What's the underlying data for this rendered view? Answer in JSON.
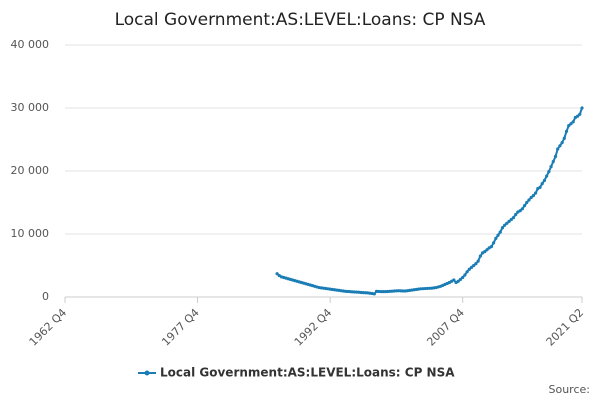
{
  "chart_data": {
    "type": "line",
    "title": "Local Government:AS:LEVEL:Loans: CP NSA",
    "source_label": "Source:",
    "x": [
      "1986 Q4",
      "1987 Q1",
      "1987 Q2",
      "1987 Q3",
      "1987 Q4",
      "1988 Q1",
      "1988 Q2",
      "1988 Q3",
      "1988 Q4",
      "1989 Q1",
      "1989 Q2",
      "1989 Q3",
      "1989 Q4",
      "1990 Q1",
      "1990 Q2",
      "1990 Q3",
      "1990 Q4",
      "1991 Q1",
      "1991 Q2",
      "1991 Q3",
      "1991 Q4",
      "1992 Q1",
      "1992 Q2",
      "1992 Q3",
      "1992 Q4",
      "1993 Q1",
      "1993 Q2",
      "1993 Q3",
      "1993 Q4",
      "1994 Q1",
      "1994 Q2",
      "1994 Q3",
      "1994 Q4",
      "1995 Q1",
      "1995 Q2",
      "1995 Q3",
      "1995 Q4",
      "1996 Q1",
      "1996 Q2",
      "1996 Q3",
      "1996 Q4",
      "1997 Q1",
      "1997 Q2",
      "1997 Q3",
      "1997 Q4",
      "1998 Q1",
      "1998 Q2",
      "1998 Q3",
      "1998 Q4",
      "1999 Q1",
      "1999 Q2",
      "1999 Q3",
      "1999 Q4",
      "2000 Q1",
      "2000 Q2",
      "2000 Q3",
      "2000 Q4",
      "2001 Q1",
      "2001 Q2",
      "2001 Q3",
      "2001 Q4",
      "2002 Q1",
      "2002 Q2",
      "2002 Q3",
      "2002 Q4",
      "2003 Q1",
      "2003 Q2",
      "2003 Q3",
      "2003 Q4",
      "2004 Q1",
      "2004 Q2",
      "2004 Q3",
      "2004 Q4",
      "2005 Q1",
      "2005 Q2",
      "2005 Q3",
      "2005 Q4",
      "2006 Q1",
      "2006 Q2",
      "2006 Q3",
      "2006 Q4",
      "2007 Q1",
      "2007 Q2",
      "2007 Q3",
      "2007 Q4",
      "2008 Q1",
      "2008 Q2",
      "2008 Q3",
      "2008 Q4",
      "2009 Q1",
      "2009 Q2",
      "2009 Q3",
      "2009 Q4",
      "2010 Q1",
      "2010 Q2",
      "2010 Q3",
      "2010 Q4",
      "2011 Q1",
      "2011 Q2",
      "2011 Q3",
      "2011 Q4",
      "2012 Q1",
      "2012 Q2",
      "2012 Q3",
      "2012 Q4",
      "2013 Q1",
      "2013 Q2",
      "2013 Q3",
      "2013 Q4",
      "2014 Q1",
      "2014 Q2",
      "2014 Q3",
      "2014 Q4",
      "2015 Q1",
      "2015 Q2",
      "2015 Q3",
      "2015 Q4",
      "2016 Q1",
      "2016 Q2",
      "2016 Q3",
      "2016 Q4",
      "2017 Q1",
      "2017 Q2",
      "2017 Q3",
      "2017 Q4",
      "2018 Q1",
      "2018 Q2",
      "2018 Q3",
      "2018 Q4",
      "2019 Q1",
      "2019 Q2",
      "2019 Q3",
      "2019 Q4",
      "2020 Q1",
      "2020 Q2",
      "2020 Q3",
      "2020 Q4",
      "2021 Q1",
      "2021 Q2"
    ],
    "series": [
      {
        "name": "Local Government:AS:LEVEL:Loans: CP NSA",
        "color": "#1a7db6",
        "values": [
          3700,
          3400,
          3200,
          3100,
          3000,
          2900,
          2800,
          2700,
          2600,
          2500,
          2400,
          2300,
          2200,
          2100,
          2000,
          1900,
          1800,
          1700,
          1600,
          1500,
          1450,
          1400,
          1350,
          1300,
          1250,
          1200,
          1150,
          1100,
          1050,
          1000,
          950,
          900,
          880,
          850,
          820,
          800,
          780,
          750,
          720,
          700,
          680,
          650,
          600,
          550,
          500,
          900,
          880,
          860,
          850,
          850,
          870,
          900,
          920,
          950,
          980,
          1000,
          980,
          960,
          950,
          1000,
          1050,
          1100,
          1150,
          1200,
          1250,
          1300,
          1320,
          1340,
          1360,
          1380,
          1400,
          1450,
          1500,
          1600,
          1700,
          1850,
          2000,
          2150,
          2300,
          2500,
          2700,
          2300,
          2500,
          2800,
          3100,
          3500,
          4000,
          4400,
          4700,
          5000,
          5300,
          5700,
          6500,
          7000,
          7200,
          7500,
          7800,
          8000,
          8600,
          9300,
          9800,
          10300,
          11000,
          11400,
          11700,
          12000,
          12300,
          12600,
          13100,
          13500,
          13700,
          14000,
          14500,
          15000,
          15400,
          15800,
          16100,
          16500,
          17200,
          17400,
          18000,
          18500,
          19200,
          19900,
          20700,
          21500,
          22300,
          23500,
          24000,
          24500,
          25200,
          26300,
          27200,
          27500,
          27800,
          28500,
          28700,
          29000,
          30000
        ]
      }
    ],
    "xlim": [
      "1962 Q4",
      "2021 Q2"
    ],
    "xticks": [
      "1962 Q4",
      "1977 Q4",
      "1992 Q4",
      "2007 Q4",
      "2021 Q2"
    ],
    "ylim": [
      0,
      40000
    ],
    "yticks": [
      0,
      {
        "value": 10000,
        "label": "10 000"
      },
      {
        "value": 20000,
        "label": "20 000"
      },
      {
        "value": 30000,
        "label": "30 000"
      },
      {
        "value": 40000,
        "label": "40 000"
      }
    ],
    "grid": true
  }
}
